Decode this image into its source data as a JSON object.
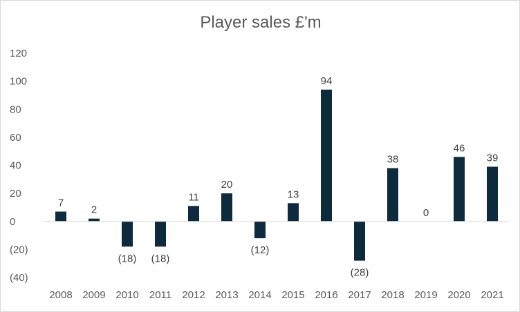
{
  "chart_data": {
    "type": "bar",
    "title": "Player sales £'m",
    "xlabel": "",
    "ylabel": "",
    "categories": [
      "2008",
      "2009",
      "2010",
      "2011",
      "2012",
      "2013",
      "2014",
      "2015",
      "2016",
      "2017",
      "2018",
      "2019",
      "2020",
      "2021"
    ],
    "values": [
      7,
      2,
      -18,
      -18,
      11,
      20,
      -12,
      13,
      94,
      -28,
      38,
      0,
      46,
      39
    ],
    "data_labels": [
      "7",
      "2",
      "(18)",
      "(18)",
      "11",
      "20",
      "(12)",
      "13",
      "94",
      "(28)",
      "38",
      "0",
      "46",
      "39"
    ],
    "y_ticks": [
      120,
      100,
      80,
      60,
      40,
      20,
      0,
      -20,
      -40
    ],
    "y_tick_labels": [
      "120",
      "100",
      "80",
      "60",
      "40",
      "20",
      "0",
      "(20)",
      "(40)"
    ],
    "ylim": [
      -40,
      120
    ],
    "grid": false,
    "legend": "none",
    "bar_color": "#0e2a3d",
    "axis_color": "#d9d9d9"
  }
}
